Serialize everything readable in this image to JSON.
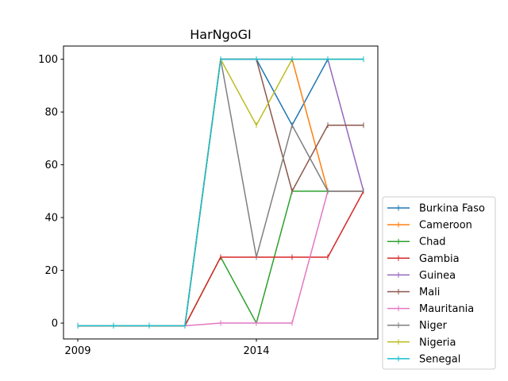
{
  "chart_data": {
    "type": "line",
    "title": "HarNgoGI",
    "xlabel": "",
    "ylabel": "",
    "x": [
      2009,
      2010,
      2011,
      2012,
      2013,
      2014,
      2015,
      2016,
      2017
    ],
    "xticks": [
      2009,
      2014
    ],
    "xlim": [
      2008.6,
      2017.4
    ],
    "yticks": [
      0,
      20,
      40,
      60,
      80,
      100
    ],
    "ylim": [
      -6,
      105
    ],
    "grid": false,
    "legend_position": "right",
    "series": [
      {
        "name": "Burkina Faso",
        "color": "#1f77b4",
        "values": [
          -1,
          -1,
          -1,
          -1,
          100,
          100,
          75,
          100,
          100
        ]
      },
      {
        "name": "Cameroon",
        "color": "#ff7f0e",
        "values": [
          -1,
          -1,
          -1,
          -1,
          100,
          100,
          100,
          50,
          50
        ]
      },
      {
        "name": "Chad",
        "color": "#2ca02c",
        "values": [
          -1,
          -1,
          -1,
          -1,
          25,
          0,
          50,
          50,
          50
        ]
      },
      {
        "name": "Gambia",
        "color": "#d62728",
        "values": [
          -1,
          -1,
          -1,
          -1,
          25,
          25,
          25,
          25,
          50
        ]
      },
      {
        "name": "Guinea",
        "color": "#9467bd",
        "values": [
          -1,
          -1,
          -1,
          -1,
          100,
          100,
          100,
          100,
          50
        ]
      },
      {
        "name": "Mali",
        "color": "#8c564b",
        "values": [
          -1,
          -1,
          -1,
          -1,
          100,
          100,
          50,
          75,
          75
        ]
      },
      {
        "name": "Mauritania",
        "color": "#e377c2",
        "values": [
          -1,
          -1,
          -1,
          -1,
          0,
          0,
          0,
          50,
          50
        ]
      },
      {
        "name": "Niger",
        "color": "#7f7f7f",
        "values": [
          -1,
          -1,
          -1,
          -1,
          100,
          25,
          75,
          50,
          50
        ]
      },
      {
        "name": "Nigeria",
        "color": "#bcbd22",
        "values": [
          -1,
          -1,
          -1,
          -1,
          100,
          75,
          100,
          100,
          100
        ]
      },
      {
        "name": "Senegal",
        "color": "#17becf",
        "values": [
          -1,
          -1,
          -1,
          -1,
          100,
          100,
          100,
          100,
          100
        ]
      }
    ]
  }
}
